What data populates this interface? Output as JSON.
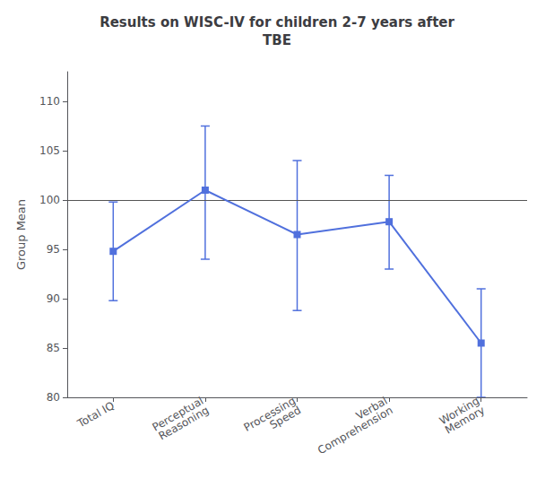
{
  "chart_data": {
    "type": "line",
    "title": "Results on WISC-IV for children 2-7 years after\nTBE",
    "ylabel": "Group Mean",
    "categories": [
      "Total IQ",
      "Perceptual\nReasoning",
      "Processing\nSpeed",
      "Verbal\nComprehension",
      "Working\nMemory"
    ],
    "values": [
      94.8,
      101.0,
      96.5,
      97.8,
      85.5
    ],
    "ci_lower": [
      89.8,
      94.0,
      88.8,
      93.0,
      80.0
    ],
    "ci_upper": [
      99.8,
      107.5,
      104.0,
      102.5,
      91.0
    ],
    "reference_line": 100,
    "ylim": [
      80,
      113
    ],
    "yticks": [
      80,
      85,
      90,
      95,
      100,
      105,
      110
    ],
    "marker": "square",
    "grid": false
  }
}
